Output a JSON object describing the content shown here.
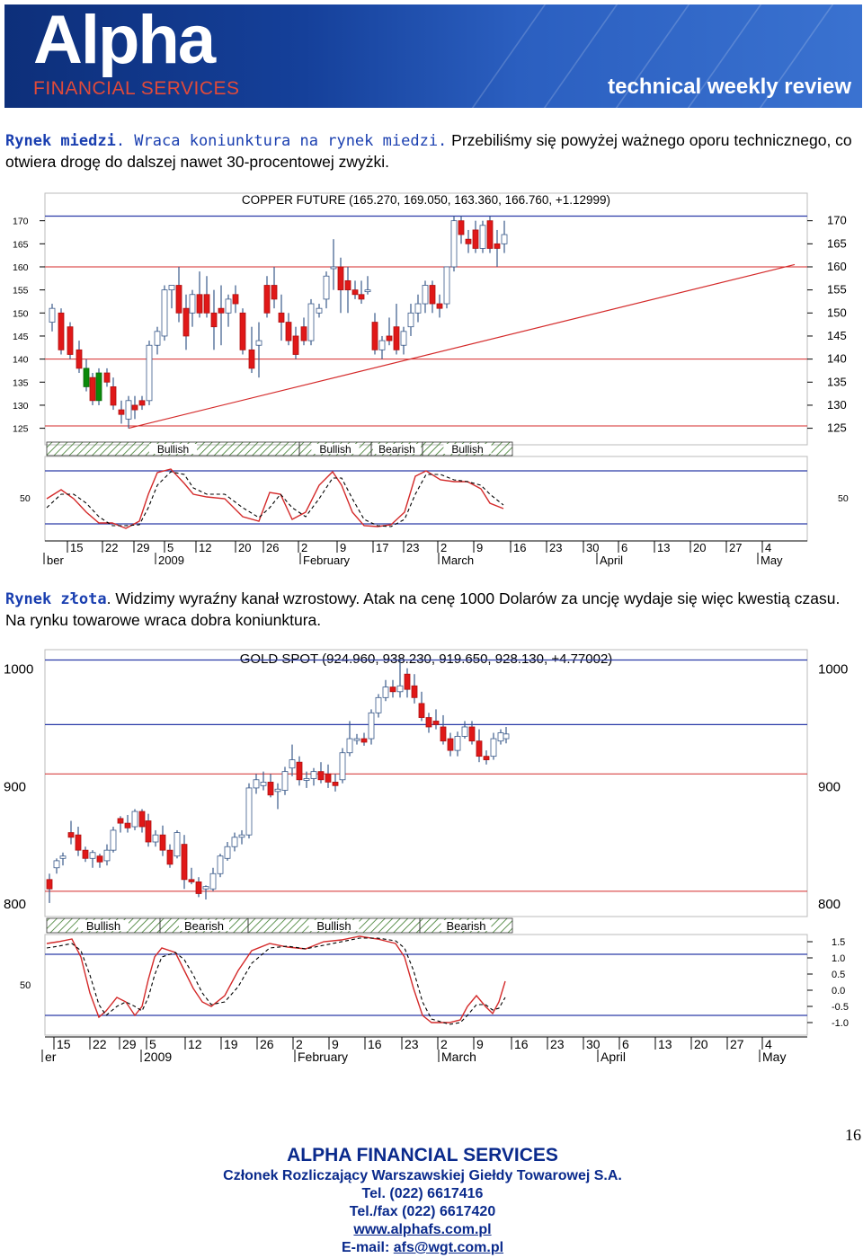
{
  "header": {
    "logo_text": "Alpha",
    "logo_sub": "FINANCIAL SERVICES",
    "tagline": "technical weekly review"
  },
  "copper_section": {
    "heading": "Rynek miedzi",
    "sentence1": ". Wraca koniunktura na rynek miedzi.",
    "sentence2": " Przebiliśmy się powyżej ważnego oporu technicznego, co otwiera drogę do dalszej nawet 30-procentowej zwyżki."
  },
  "gold_section": {
    "heading": "Rynek złota",
    "text": ". Widzimy wyraźny kanał wzrostowy. Atak na cenę 1000 Dolarów za uncję wydaje się więc kwestią czasu. Na rynku towarowe wraca dobra koniunktura."
  },
  "colors": {
    "blue_line": "#2a3aa8",
    "red_line": "#d42a2a",
    "bull": "#ffffff",
    "bear": "#e01818",
    "green": "#0a8a0a",
    "wick": "#3a5a8a",
    "link": "#0a2a8c"
  },
  "chart_data": [
    {
      "type": "candlestick",
      "title": "COPPER FUTURE (165.270, 169.050, 163.360, 166.760, +1.12999)",
      "y_ticks": [
        170,
        165,
        160,
        155,
        150,
        145,
        140,
        135,
        130,
        125
      ],
      "ylim": [
        122,
        175
      ],
      "indicator_labels": [
        "Bullish",
        "Bullish",
        "Bearish",
        "Bullish"
      ],
      "indicator_tick": "50",
      "date_ticks": [
        "15",
        "22",
        "29",
        "5",
        "12",
        "20",
        "26",
        "2",
        "9",
        "17",
        "23",
        "2",
        "9",
        "16",
        "23",
        "30",
        "6",
        "13",
        "20",
        "27",
        "4"
      ],
      "month_labels": [
        "ber",
        "2009",
        "February",
        "March",
        "April",
        "May"
      ]
    },
    {
      "type": "candlestick",
      "title": "GOLD SPOT (924.960, 938.230, 919.650, 928.130, +4.77002)",
      "y_ticks": [
        1000,
        900,
        800
      ],
      "ylim": [
        790,
        1012
      ],
      "indicator_labels": [
        "Bullish",
        "Bearish",
        "Bullish",
        "Bearish"
      ],
      "indicator_ticks_left": [
        "50"
      ],
      "indicator_ticks_right": [
        "1.5",
        "1.0",
        "0.5",
        "0.0",
        "-0.5",
        "-1.0"
      ],
      "date_ticks": [
        "15",
        "22",
        "29",
        "5",
        "12",
        "19",
        "26",
        "2",
        "9",
        "16",
        "23",
        "2",
        "9",
        "16",
        "23",
        "30",
        "6",
        "13",
        "20",
        "27",
        "4"
      ],
      "month_labels": [
        "er",
        "2009",
        "February",
        "March",
        "April",
        "May"
      ]
    }
  ],
  "page_number": "16",
  "footer": {
    "company": "ALPHA FINANCIAL SERVICES",
    "member": "Członek Rozliczający Warszawskiej Giełdy Towarowej S.A.",
    "tel": "Tel. (022) 6617416",
    "fax": "Tel./fax (022) 6617420",
    "website": "www.alphafs.com.pl",
    "email_label": "E-mail: ",
    "email": "afs@wgt.com.pl"
  }
}
